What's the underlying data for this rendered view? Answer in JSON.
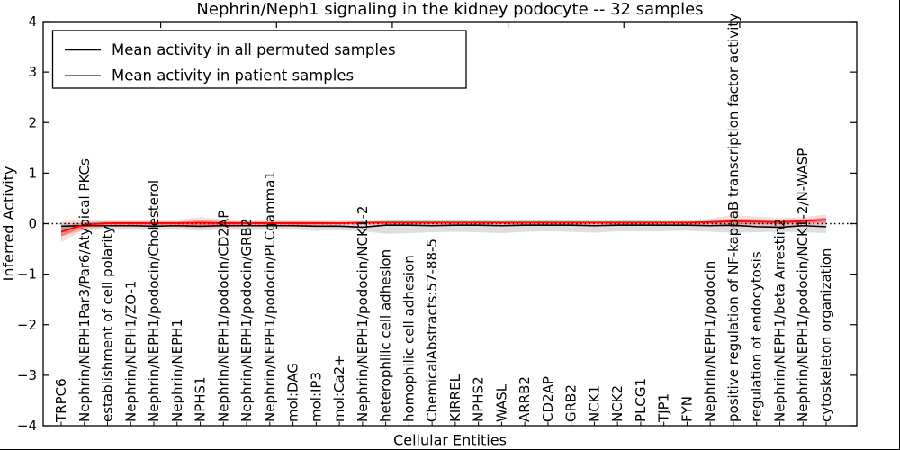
{
  "figure": {
    "background": "#ffffff",
    "frame_color": "#000000"
  },
  "chart_data": {
    "type": "line",
    "title": "Nephrin/Neph1 signaling in the kidney podocyte -- 32 samples",
    "xlabel": "Cellular Entities",
    "ylabel": "Inferred Activity",
    "ylim": [
      -4,
      4
    ],
    "grid": false,
    "legend_position": "upper left",
    "zero_line": {
      "style": "dotted",
      "color": "#000000",
      "y": 0
    },
    "yticks": [
      {
        "value": 4,
        "label": "4"
      },
      {
        "value": 3,
        "label": "3"
      },
      {
        "value": 2,
        "label": "2"
      },
      {
        "value": 1,
        "label": "1"
      },
      {
        "value": 0,
        "label": "0"
      },
      {
        "value": -1,
        "label": "−1"
      },
      {
        "value": -2,
        "label": "−2"
      },
      {
        "value": -3,
        "label": "−3"
      },
      {
        "value": -4,
        "label": "−4"
      }
    ],
    "categories": [
      "TRPC6",
      "Nephrin/NEPH1Par3/Par6/Atypical PKCs",
      "establishment of cell polarity",
      "Nephrin/NEPH1/ZO-1",
      "Nephrin/NEPH1/podocin/Cholesterol",
      "Nephrin/NEPH1",
      "NPHS1",
      "Nephrin/NEPH1/podocin/CD2AP",
      "Nephrin/NEPH1/podocin/GRB2",
      "Nephrin/NEPH1/podocin/PLCgamma1",
      "mol:DAG",
      "mol:IP3",
      "mol:Ca2+",
      "Nephrin/NEPH1/podocin/NCK1-2",
      "heterophilic cell adhesion",
      "homophilic cell adhesion",
      "ChemicalAbstracts:57-88-5",
      "KIRREL",
      "NPHS2",
      "WASL",
      "ARRB2",
      "CD2AP",
      "GRB2",
      "NCK1",
      "NCK2",
      "PLCG1",
      "TJP1",
      "FYN",
      "Nephrin/NEPH1/podocin",
      "positive regulation of NF-kappaB transcription factor activity",
      "regulation of endocytosis",
      "Nephrin/NEPH1/beta Arrestin2",
      "Nephrin/NEPH1/podocin/NCK1-2/N-WASP",
      "cytoskeleton organization"
    ],
    "series": [
      {
        "name": "Mean activity in all permuted samples",
        "color": "#000000",
        "values": [
          -0.05,
          -0.04,
          -0.04,
          -0.04,
          -0.05,
          -0.04,
          -0.05,
          -0.04,
          -0.04,
          -0.04,
          -0.04,
          -0.05,
          -0.05,
          -0.07,
          -0.03,
          -0.03,
          -0.04,
          -0.03,
          -0.03,
          -0.04,
          -0.03,
          -0.03,
          -0.03,
          -0.04,
          -0.03,
          -0.03,
          -0.03,
          -0.03,
          -0.04,
          -0.03,
          -0.06,
          -0.07,
          -0.04,
          -0.06
        ]
      },
      {
        "name": "Mean activity in patient samples",
        "color": "#ff0000",
        "values": [
          -0.16,
          -0.02,
          0.01,
          0.01,
          0.01,
          0.01,
          0.02,
          0.01,
          0.01,
          0.01,
          0.01,
          0.01,
          0.01,
          0.02,
          0.02,
          0.02,
          0.02,
          0.02,
          0.02,
          0.02,
          0.02,
          0.02,
          0.02,
          0.02,
          0.02,
          0.02,
          0.02,
          0.02,
          0.03,
          0.05,
          0.04,
          0.03,
          0.05,
          0.08
        ]
      }
    ],
    "bands": [
      {
        "name": "permuted-range",
        "color": "#000000",
        "opacity": 0.13,
        "upper": [
          0.02,
          0.02,
          0.03,
          0.03,
          0.02,
          0.03,
          0.03,
          0.03,
          0.03,
          0.03,
          0.04,
          0.03,
          0.03,
          0.02,
          0.06,
          0.07,
          0.06,
          0.06,
          0.06,
          0.05,
          0.06,
          0.06,
          0.06,
          0.05,
          0.06,
          0.06,
          0.05,
          0.05,
          0.05,
          0.07,
          0.05,
          0.04,
          0.06,
          0.05
        ],
        "lower": [
          -0.25,
          -0.13,
          -0.12,
          -0.12,
          -0.13,
          -0.12,
          -0.14,
          -0.12,
          -0.13,
          -0.12,
          -0.12,
          -0.14,
          -0.13,
          -0.15,
          -0.2,
          -0.19,
          -0.17,
          -0.16,
          -0.17,
          -0.19,
          -0.16,
          -0.15,
          -0.16,
          -0.18,
          -0.15,
          -0.15,
          -0.15,
          -0.14,
          -0.16,
          -0.18,
          -0.17,
          -0.16,
          -0.17,
          -0.19
        ]
      },
      {
        "name": "patient-range",
        "color": "#ff0000",
        "opacity": 0.14,
        "upper": [
          0.05,
          0.08,
          0.08,
          0.08,
          0.08,
          0.08,
          0.13,
          0.09,
          0.08,
          0.08,
          0.07,
          0.07,
          0.06,
          0.07,
          0.06,
          0.06,
          0.06,
          0.06,
          0.06,
          0.06,
          0.06,
          0.06,
          0.06,
          0.06,
          0.06,
          0.06,
          0.06,
          0.07,
          0.1,
          0.17,
          0.14,
          0.11,
          0.13,
          0.18
        ],
        "lower": [
          -0.37,
          -0.12,
          -0.06,
          -0.06,
          -0.06,
          -0.06,
          -0.09,
          -0.07,
          -0.06,
          -0.06,
          -0.05,
          -0.05,
          -0.04,
          -0.03,
          -0.02,
          -0.02,
          -0.02,
          -0.02,
          -0.02,
          -0.02,
          -0.02,
          -0.02,
          -0.02,
          -0.02,
          -0.02,
          -0.02,
          -0.02,
          -0.03,
          -0.04,
          -0.07,
          -0.06,
          -0.05,
          -0.03,
          -0.02
        ]
      },
      {
        "name": "patient-inner-range",
        "color": "#ff0000",
        "opacity": 0.3,
        "upper": [
          -0.07,
          0.03,
          0.04,
          0.04,
          0.04,
          0.04,
          0.07,
          0.05,
          0.04,
          0.04,
          0.04,
          0.04,
          0.03,
          0.04,
          0.04,
          0.04,
          0.04,
          0.04,
          0.04,
          0.04,
          0.04,
          0.04,
          0.04,
          0.04,
          0.04,
          0.04,
          0.04,
          0.04,
          0.06,
          0.1,
          0.09,
          0.07,
          0.09,
          0.12
        ],
        "lower": [
          -0.25,
          -0.07,
          -0.02,
          -0.02,
          -0.02,
          -0.02,
          -0.03,
          -0.03,
          -0.02,
          -0.02,
          -0.02,
          -0.02,
          -0.01,
          0.0,
          0.0,
          0.0,
          0.0,
          0.0,
          0.0,
          0.0,
          0.0,
          0.0,
          0.0,
          0.0,
          0.0,
          0.0,
          0.0,
          0.0,
          0.0,
          -0.01,
          -0.01,
          -0.01,
          0.01,
          0.02
        ]
      }
    ]
  }
}
